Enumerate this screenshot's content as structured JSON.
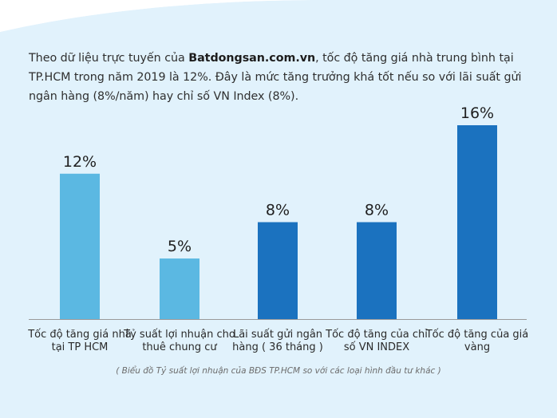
{
  "intro": {
    "part1": "Theo dữ liệu trực tuyến của ",
    "brand": "Batdongsan.com.vn",
    "part2": ", tốc độ tăng giá nhà trung bình tại TP.HCM trong năm 2019 là 12%. Đây là mức tăng trưởng khá tốt nếu so với lãi suất gửi ngân hàng (8%/năm) hay chỉ số VN Index (8%)."
  },
  "caption": "( Biểu đồ Tỷ suất lợi nhuận của BĐS TP.HCM so với các loại hình đầu tư khác )",
  "colors": {
    "light_bar": "#5bb8e2",
    "dark_bar": "#1b72bf",
    "background": "#ffffff",
    "panel": "#e1f2fc",
    "axis": "#9a9a9a",
    "text": "#2a2a2a"
  },
  "chart_data": {
    "type": "bar",
    "categories": [
      "Tốc độ tăng giá nhà tại TP HCM",
      "Tỷ suất lợi nhuận cho thuê chung cư",
      "Lãi suất gửi ngân hàng ( 36 tháng )",
      "Tốc độ tăng của chỉ số VN INDEX",
      "Tốc độ tăng của giá vàng"
    ],
    "values": [
      12,
      5,
      8,
      8,
      16
    ],
    "data_labels": [
      "12%",
      "5%",
      "8%",
      "8%",
      "16%"
    ],
    "bar_colors": [
      "light",
      "light",
      "dark",
      "dark",
      "dark"
    ],
    "unit": "%",
    "title": "",
    "xlabel": "",
    "ylabel": "",
    "ylim": [
      0,
      16
    ],
    "grid": false,
    "legend": "none"
  }
}
